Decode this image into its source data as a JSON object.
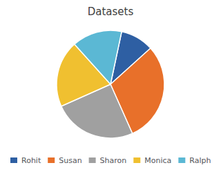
{
  "chart_data": {
    "type": "pie",
    "title": "Datasets",
    "categories": [
      "Rohit",
      "Susan",
      "Sharon",
      "Monica",
      "Ralph"
    ],
    "values": [
      10,
      30,
      25,
      20,
      15
    ],
    "colors": [
      "#2e5fa3",
      "#e8702a",
      "#a0a0a0",
      "#f0c030",
      "#5bb8d4"
    ],
    "legend": "lower left"
  }
}
